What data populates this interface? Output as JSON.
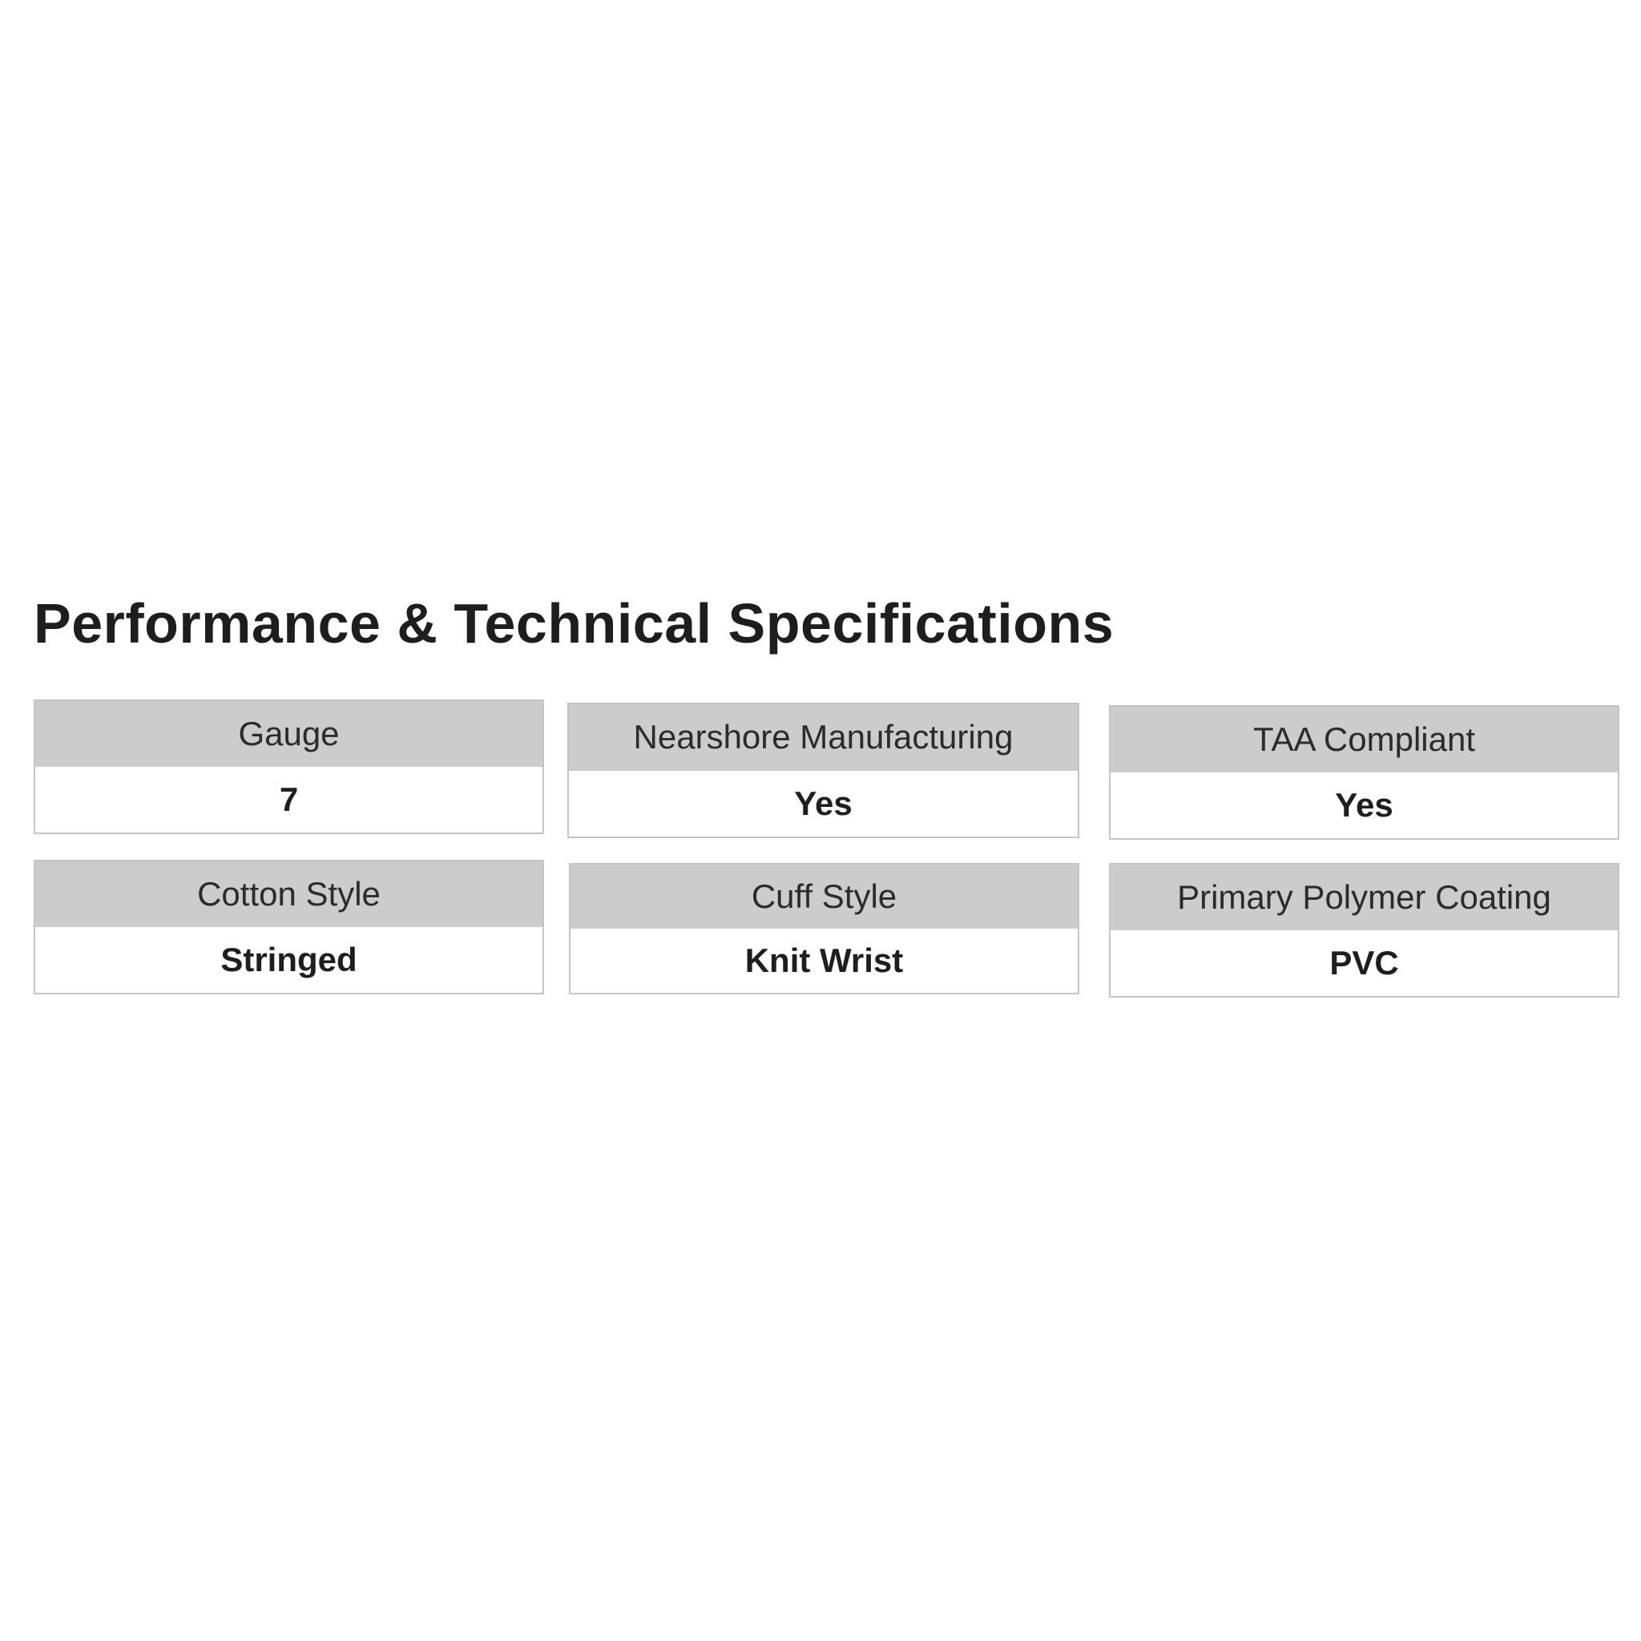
{
  "title": "Performance & Technical Specifications",
  "specs": [
    {
      "label": "Gauge",
      "value": "7"
    },
    {
      "label": "Nearshore Manufacturing",
      "value": "Yes"
    },
    {
      "label": "TAA Compliant",
      "value": "Yes"
    },
    {
      "label": "Cotton Style",
      "value": "Stringed"
    },
    {
      "label": "Cuff Style",
      "value": "Knit Wrist"
    },
    {
      "label": "Primary Polymer Coating",
      "value": "PVC"
    }
  ]
}
